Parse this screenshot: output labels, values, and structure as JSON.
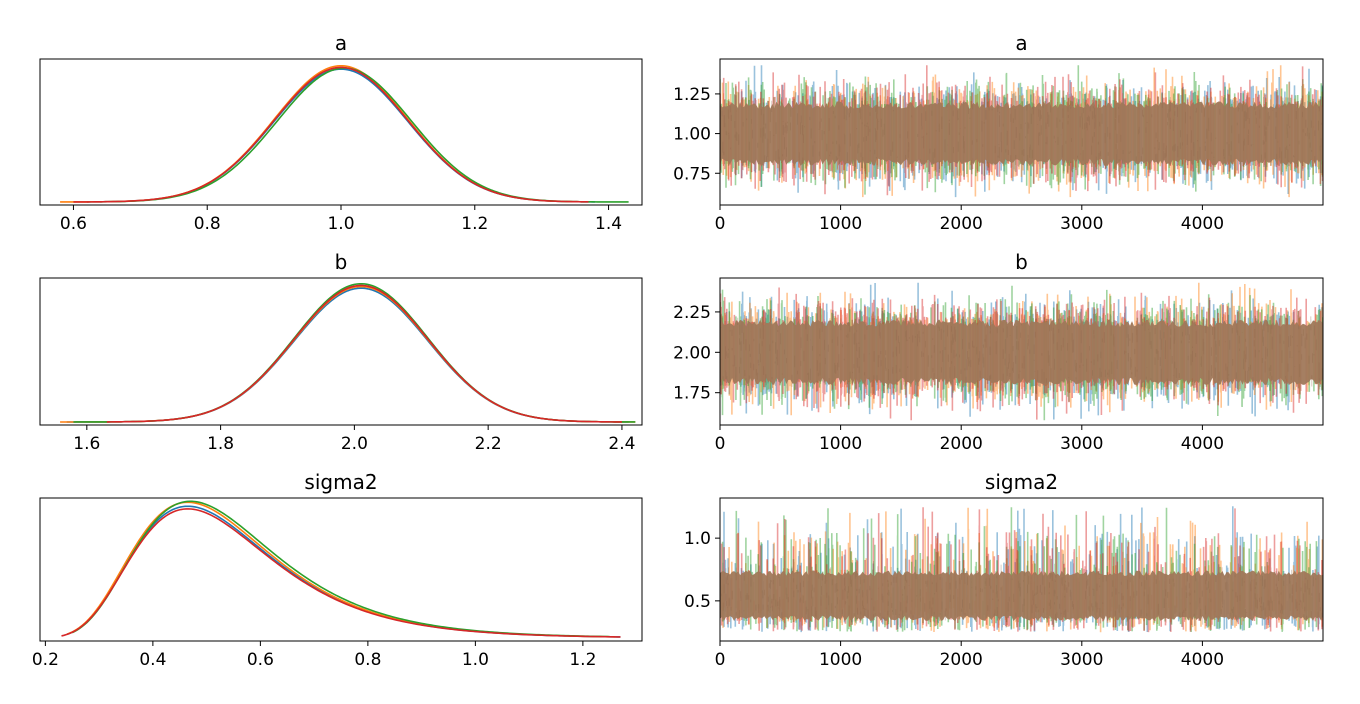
{
  "colors": {
    "chain_1": "#1f77b4",
    "chain_2": "#ff7f0e",
    "chain_3": "#2ca02c",
    "chain_4": "#d62728",
    "trace_band": "#a0785a"
  },
  "chart_data": [
    {
      "type": "line",
      "title": "a",
      "xlabel": "",
      "ylabel": "",
      "xlim": [
        0.55,
        1.45
      ],
      "xticks": [
        "0.6",
        "0.8",
        "1.0",
        "1.2",
        "1.4"
      ],
      "yticks": [],
      "series": [
        {
          "mean": 1.0,
          "sd": 0.1,
          "peak": 3.95,
          "x_range": [
            0.62,
            1.38
          ]
        },
        {
          "mean": 1.0,
          "sd": 0.1,
          "peak": 4.05,
          "x_range": [
            0.58,
            1.36
          ]
        },
        {
          "mean": 1.005,
          "sd": 0.1,
          "peak": 3.98,
          "x_range": [
            0.64,
            1.43
          ]
        },
        {
          "mean": 1.0,
          "sd": 0.1,
          "peak": 4.0,
          "x_range": [
            0.6,
            1.37
          ]
        }
      ]
    },
    {
      "type": "line",
      "title": "a",
      "xlabel": "",
      "ylabel": "",
      "xlim": [
        0,
        5000
      ],
      "ylim": [
        0.55,
        1.47
      ],
      "xticks": [
        "0",
        "1000",
        "2000",
        "3000",
        "4000"
      ],
      "yticks": [
        "0.75",
        "1.00",
        "1.25"
      ],
      "trace": {
        "n_draws": 5000,
        "center": 1.0,
        "band": [
          0.82,
          1.18
        ],
        "spread": [
          0.6,
          1.43
        ]
      }
    },
    {
      "type": "line",
      "title": "b",
      "xlabel": "",
      "ylabel": "",
      "xlim": [
        1.53,
        2.43
      ],
      "xticks": [
        "1.6",
        "1.8",
        "2.0",
        "2.2",
        "2.4"
      ],
      "yticks": [],
      "series": [
        {
          "mean": 2.01,
          "sd": 0.1,
          "peak": 3.95,
          "x_range": [
            1.57,
            2.41
          ]
        },
        {
          "mean": 2.01,
          "sd": 0.1,
          "peak": 4.0,
          "x_range": [
            1.56,
            2.42
          ]
        },
        {
          "mean": 2.01,
          "sd": 0.1,
          "peak": 4.08,
          "x_range": [
            1.58,
            2.42
          ]
        },
        {
          "mean": 2.01,
          "sd": 0.1,
          "peak": 4.03,
          "x_range": [
            1.63,
            2.4
          ]
        }
      ]
    },
    {
      "type": "line",
      "title": "b",
      "xlabel": "",
      "ylabel": "",
      "xlim": [
        0,
        5000
      ],
      "ylim": [
        1.55,
        2.46
      ],
      "xticks": [
        "0",
        "1000",
        "2000",
        "3000",
        "4000"
      ],
      "yticks": [
        "1.75",
        "2.00",
        "2.25"
      ],
      "trace": {
        "n_draws": 5000,
        "center": 2.0,
        "band": [
          1.82,
          2.18
        ],
        "spread": [
          1.58,
          2.43
        ]
      }
    },
    {
      "type": "line",
      "title": "sigma2",
      "xlabel": "",
      "ylabel": "",
      "xlim": [
        0.19,
        1.31
      ],
      "xticks": [
        "0.2",
        "0.4",
        "0.6",
        "0.8",
        "1.0",
        "1.2"
      ],
      "yticks": [],
      "series": [
        {
          "mode": 0.465,
          "peak": 4.0,
          "x_range": [
            0.24,
            1.27
          ]
        },
        {
          "mode": 0.465,
          "peak": 4.12,
          "x_range": [
            0.24,
            1.26
          ]
        },
        {
          "mode": 0.47,
          "peak": 4.15,
          "x_range": [
            0.25,
            1.25
          ]
        },
        {
          "mode": 0.465,
          "peak": 3.92,
          "x_range": [
            0.23,
            1.27
          ]
        }
      ]
    },
    {
      "type": "line",
      "title": "sigma2",
      "xlabel": "",
      "ylabel": "",
      "xlim": [
        0,
        5000
      ],
      "ylim": [
        0.18,
        1.32
      ],
      "xticks": [
        "0",
        "1000",
        "2000",
        "3000",
        "4000"
      ],
      "yticks": [
        "0.5",
        "1.0"
      ],
      "trace": {
        "n_draws": 5000,
        "center": 0.5,
        "band": [
          0.36,
          0.72
        ],
        "spread": [
          0.25,
          1.26
        ]
      }
    }
  ]
}
